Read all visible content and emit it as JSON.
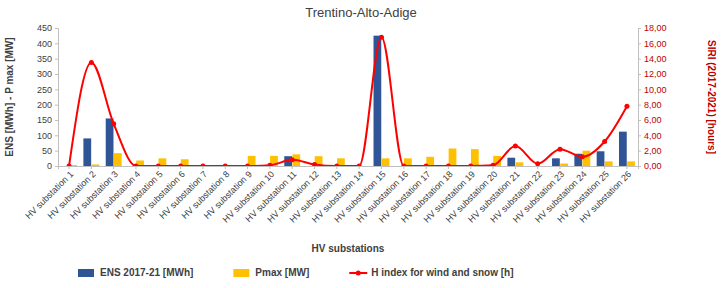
{
  "chart_data": {
    "type": "bar",
    "title": "Trentino-Alto-Adige",
    "x_label": "HV substations",
    "y_label": "ENS [MWh] - P max [MW]",
    "y2_label": "SIRI (2017-2021) [hours]",
    "categories": [
      "HV substation 1",
      "HV substation 2",
      "HV substation 3",
      "HV substation 4",
      "HV substation 5",
      "HV substation 6",
      "HV substation 7",
      "HV substation 8",
      "HV substation 9",
      "HV substation 10",
      "HV substation 11",
      "HV substation 12",
      "HV substation 13",
      "HV substation 14",
      "HV substation 15",
      "HV substation 16",
      "HV substation 17",
      "HV substation 18",
      "HV substation 19",
      "HV substation 20",
      "HV substation 21",
      "HV substation 22",
      "HV substation 23",
      "HV substation 24",
      "HV substation 25",
      "HV substation 26"
    ],
    "series": [
      {
        "name": "ENS 2017-21 [MWh]",
        "type": "bar",
        "color": "#2f5597",
        "values": [
          0,
          90,
          155,
          0,
          0,
          0,
          0,
          0,
          0,
          0,
          32,
          0,
          0,
          0,
          425,
          0,
          0,
          0,
          0,
          0,
          27,
          0,
          25,
          40,
          48,
          112
        ]
      },
      {
        "name": "Pmax [MW]",
        "type": "bar",
        "color": "#ffc000",
        "values": [
          3,
          5,
          42,
          18,
          25,
          22,
          3,
          3,
          33,
          33,
          38,
          32,
          25,
          0,
          25,
          25,
          30,
          57,
          55,
          33,
          12,
          0,
          8,
          50,
          15,
          15
        ]
      },
      {
        "name": "H index for wind and snow [h]",
        "type": "line",
        "axis": "y2",
        "color": "#ff0000",
        "marker": "circle",
        "line_style": "smooth",
        "values": [
          0,
          13.5,
          5.5,
          0,
          0,
          0,
          0,
          0,
          0,
          0.1,
          0.8,
          0.2,
          0,
          0,
          16.8,
          0,
          0,
          0,
          0,
          0.1,
          2.6,
          0.3,
          2.2,
          1.2,
          3.2,
          7.8
        ]
      }
    ],
    "ylim": [
      0,
      450
    ],
    "yticks": [
      0,
      50,
      100,
      150,
      200,
      250,
      300,
      350,
      400,
      450
    ],
    "y2lim": [
      0,
      18
    ],
    "y2ticks": [
      {
        "value": 0,
        "label": "0,00"
      },
      {
        "value": 2,
        "label": "2,00"
      },
      {
        "value": 4,
        "label": "4,00"
      },
      {
        "value": 6,
        "label": "6,00"
      },
      {
        "value": 8,
        "label": "8,00"
      },
      {
        "value": 10,
        "label": "10,00"
      },
      {
        "value": 12,
        "label": "12,00"
      },
      {
        "value": 14,
        "label": "14,00"
      },
      {
        "value": 16,
        "label": "16,00"
      },
      {
        "value": 18,
        "label": "18,00"
      }
    ],
    "grid": false,
    "legend": "bottom"
  }
}
